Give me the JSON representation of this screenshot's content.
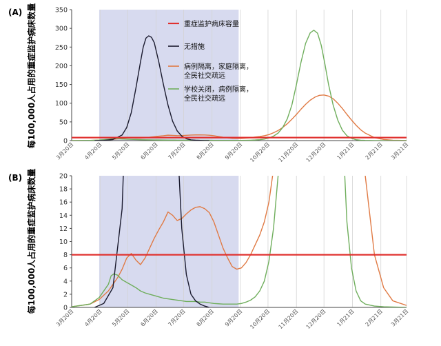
{
  "colors": {
    "capacity": "#e0312f",
    "none": "#1a1a2e",
    "isolation": "#e07a44",
    "school": "#6fae5c",
    "shade": "#c9cdea",
    "grid": "#d4d4d4",
    "axis": "#444444"
  },
  "chart_data": [
    {
      "type": "line",
      "panel_label": "(A)",
      "ylabel": "每100,000人占用的重症监护病床数量",
      "ylim": [
        0,
        350
      ],
      "y_ticks": [
        0,
        50,
        100,
        150,
        200,
        250,
        300,
        350
      ],
      "x_unit": "days since 3月20日",
      "x_tick_labels": [
        "3月20日",
        "4月20日",
        "5月20日",
        "6月20日",
        "7月20日",
        "8月20日",
        "9月20日",
        "10月20日",
        "11月20日",
        "12月20日",
        "1月21日",
        "2月21日",
        "3月21日"
      ],
      "x_ticks": [
        0,
        31,
        61,
        92,
        122,
        153,
        184,
        214,
        245,
        275,
        306,
        337,
        365
      ],
      "grid": "vertical",
      "intervention_window": [
        30,
        182
      ],
      "legend": {
        "placement": "top-right",
        "entries": [
          {
            "series": "capacity",
            "label": "重症监护病床容量"
          },
          {
            "series": "none",
            "label": "无措施"
          },
          {
            "series": "isolation",
            "label": "病例隔离，家庭隔离，全民社交疏远",
            "lines": [
              "病例隔离，家庭隔离，",
              "全民社交疏远"
            ]
          },
          {
            "series": "school",
            "label": "学校关闭，病例隔离，全民社交疏远",
            "lines": [
              "学校关闭，病例隔离，",
              "全民社交疏远"
            ]
          }
        ]
      },
      "series": [
        {
          "key": "capacity",
          "name": "重症监护病床容量",
          "x": [
            0,
            365
          ],
          "y": [
            8,
            8
          ]
        },
        {
          "key": "none",
          "name": "无措施",
          "x": [
            25,
            35,
            45,
            55,
            60,
            65,
            70,
            75,
            78,
            81,
            84,
            87,
            90,
            95,
            100,
            105,
            110,
            115,
            120,
            125,
            130,
            135,
            140,
            145,
            150
          ],
          "y": [
            0,
            0.6,
            3,
            15,
            35,
            75,
            140,
            210,
            250,
            274,
            280,
            276,
            262,
            210,
            150,
            95,
            52,
            26,
            12,
            5,
            2,
            1,
            0.5,
            0.2,
            0
          ]
        },
        {
          "key": "isolation",
          "name": "病例隔离，家庭隔离，全民社交疏远",
          "x": [
            0,
            20,
            30,
            40,
            45,
            50,
            55,
            60,
            65,
            70,
            75,
            80,
            85,
            90,
            95,
            100,
            105,
            110,
            115,
            120,
            125,
            130,
            135,
            140,
            145,
            150,
            155,
            160,
            165,
            170,
            175,
            180,
            185,
            190,
            195,
            200,
            205,
            210,
            215,
            220,
            225,
            230,
            235,
            240,
            245,
            250,
            255,
            260,
            265,
            270,
            275,
            280,
            285,
            290,
            295,
            300,
            305,
            310,
            315,
            320,
            330,
            340,
            350,
            365
          ],
          "y": [
            0.1,
            0.5,
            1.2,
            2.5,
            3.5,
            4.5,
            5.8,
            7.5,
            8.2,
            7.2,
            6.5,
            7.5,
            9,
            10.5,
            11.8,
            13,
            14.5,
            14,
            13.2,
            13.5,
            14.2,
            14.8,
            15.2,
            15.3,
            15,
            14.4,
            13,
            11,
            9,
            7.5,
            6.2,
            5.8,
            6,
            6.8,
            8,
            9.5,
            11,
            13,
            16,
            21,
            27,
            35,
            45,
            57,
            70,
            84,
            97,
            108,
            116,
            121,
            122,
            119,
            112,
            100,
            86,
            70,
            55,
            41,
            29,
            20,
            8,
            3,
            1,
            0.3
          ]
        },
        {
          "key": "school",
          "name": "学校关闭，病例隔离，全民社交疏远",
          "x": [
            0,
            20,
            30,
            40,
            43,
            46,
            50,
            55,
            60,
            65,
            70,
            75,
            80,
            85,
            90,
            95,
            100,
            105,
            110,
            115,
            120,
            125,
            130,
            135,
            140,
            145,
            150,
            155,
            160,
            165,
            170,
            175,
            180,
            185,
            190,
            195,
            200,
            205,
            210,
            215,
            220,
            225,
            230,
            235,
            240,
            245,
            250,
            255,
            260,
            264,
            268,
            272,
            276,
            280,
            285,
            290,
            295,
            300,
            305,
            310,
            315,
            320,
            330,
            340,
            365
          ],
          "y": [
            0.1,
            0.5,
            1.5,
            3.5,
            4.8,
            5.1,
            4.9,
            4.2,
            3.8,
            3.4,
            3,
            2.5,
            2.2,
            2,
            1.8,
            1.6,
            1.4,
            1.3,
            1.2,
            1.1,
            1,
            0.9,
            0.9,
            0.9,
            0.8,
            0.8,
            0.7,
            0.6,
            0.55,
            0.5,
            0.5,
            0.5,
            0.5,
            0.6,
            0.8,
            1.1,
            1.6,
            2.5,
            4,
            7,
            12,
            20,
            35,
            58,
            95,
            150,
            210,
            260,
            288,
            295,
            287,
            255,
            205,
            150,
            95,
            55,
            28,
            13,
            6,
            2.5,
            1,
            0.5,
            0.2,
            0.1,
            0
          ]
        }
      ]
    },
    {
      "type": "line",
      "panel_label": "(B)",
      "ylabel": "每100,000人占用的重症监护病床数量",
      "ylim": [
        0,
        20
      ],
      "y_ticks": [
        0,
        2,
        4,
        6,
        8,
        10,
        12,
        14,
        16,
        18,
        20
      ],
      "x_unit": "days since 3月20日",
      "x_tick_labels": [
        "3月20日",
        "4月20日",
        "5月20日",
        "6月20日",
        "7月20日",
        "8月20日",
        "9月20日",
        "10月20日",
        "11月20日",
        "12月20日",
        "1月21日",
        "2月21日",
        "3月21日"
      ],
      "x_ticks": [
        0,
        31,
        61,
        92,
        122,
        153,
        184,
        214,
        245,
        275,
        306,
        337,
        365
      ],
      "grid": "vertical",
      "intervention_window": [
        30,
        182
      ],
      "series_ref": "same series as panel (A), zoomed to y range 0–20"
    }
  ]
}
